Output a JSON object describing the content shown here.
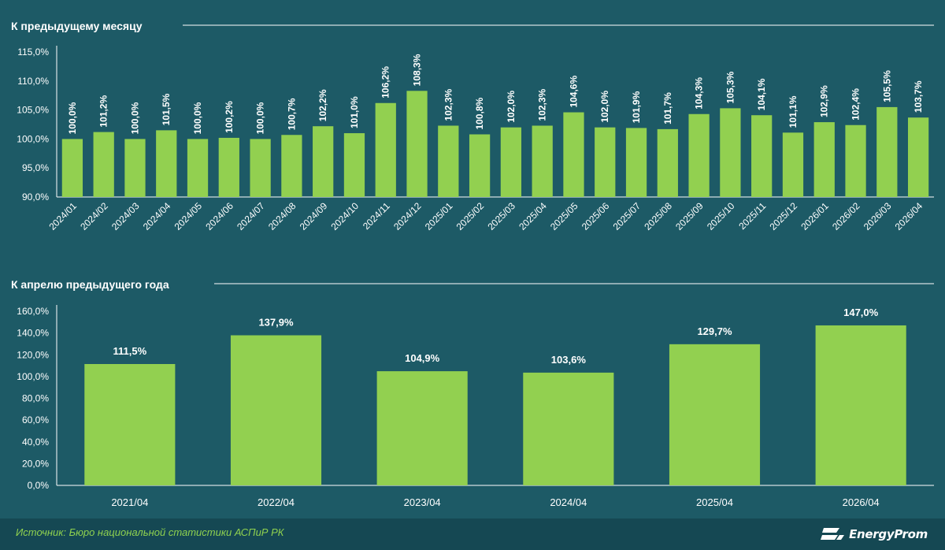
{
  "chart_data": [
    {
      "type": "bar",
      "title": "К предыдущему месяцу",
      "categories": [
        "2024/01",
        "2024/02",
        "2024/03",
        "2024/04",
        "2024/05",
        "2024/06",
        "2024/07",
        "2024/08",
        "2024/09",
        "2024/10",
        "2024/11",
        "2024/12",
        "2025/01",
        "2025/02",
        "2025/03",
        "2025/04",
        "2025/05",
        "2025/06",
        "2025/07",
        "2025/08",
        "2025/09",
        "2025/10",
        "2025/11",
        "2025/12",
        "2026/01",
        "2026/02",
        "2026/03",
        "2026/04"
      ],
      "values": [
        100.0,
        101.2,
        100.0,
        101.5,
        100.0,
        100.2,
        100.0,
        100.7,
        102.2,
        101.0,
        106.2,
        108.3,
        102.3,
        100.8,
        102.0,
        102.3,
        104.6,
        102.0,
        101.9,
        101.7,
        104.3,
        105.3,
        104.1,
        101.1,
        102.9,
        102.4,
        105.5,
        103.7
      ],
      "data_labels": [
        "100,0%",
        "101,2%",
        "100,0%",
        "101,5%",
        "100,0%",
        "100,2%",
        "100,0%",
        "100,7%",
        "102,2%",
        "101,0%",
        "106,2%",
        "108,3%",
        "102,3%",
        "100,8%",
        "102,0%",
        "102,3%",
        "104,6%",
        "102,0%",
        "101,9%",
        "101,7%",
        "104,3%",
        "105,3%",
        "104,1%",
        "101,1%",
        "102,9%",
        "102,4%",
        "105,5%",
        "103,7%"
      ],
      "yticks": [
        "90,0%",
        "95,0%",
        "100,0%",
        "105,0%",
        "110,0%",
        "115,0%"
      ],
      "ylim": [
        90,
        115
      ],
      "grid": false,
      "bar_color": "#92d050"
    },
    {
      "type": "bar",
      "title": "К апрелю предыдущего года",
      "categories": [
        "2021/04",
        "2022/04",
        "2023/04",
        "2024/04",
        "2025/04",
        "2026/04"
      ],
      "values": [
        111.5,
        137.9,
        104.9,
        103.6,
        129.7,
        147.0
      ],
      "data_labels": [
        "111,5%",
        "137,9%",
        "104,9%",
        "103,6%",
        "129,7%",
        "147,0%"
      ],
      "yticks": [
        "0,0%",
        "20,0%",
        "40,0%",
        "60,0%",
        "80,0%",
        "100,0%",
        "120,0%",
        "140,0%",
        "160,0%"
      ],
      "ylim": [
        0,
        160
      ],
      "grid": false,
      "bar_color": "#92d050"
    }
  ],
  "footer": {
    "source": "Источник: Бюро национальной статистики АСПиР РК",
    "logo_text": "EnergyProm",
    "logo_icon": "energyprom-logo-icon"
  },
  "colors": {
    "background": "#1d5a66",
    "bar": "#92d050",
    "text": "#ffffff",
    "source_text": "#8fd14f"
  }
}
